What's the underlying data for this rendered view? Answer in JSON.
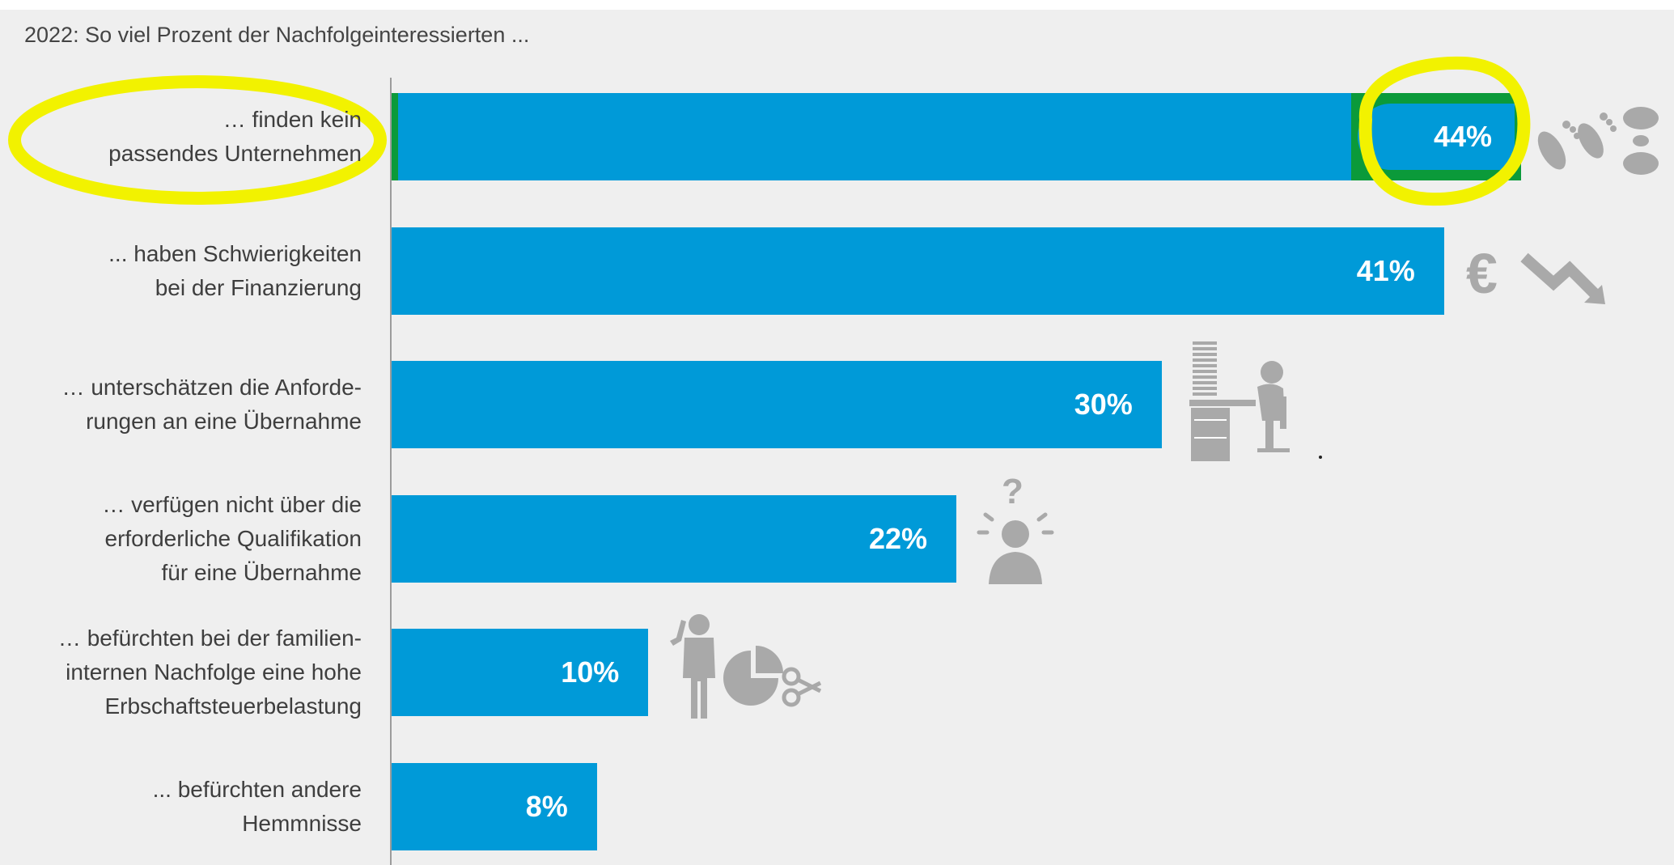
{
  "chart_data": {
    "type": "bar",
    "orientation": "horizontal",
    "title": "2022: So viel Prozent der Nachfolgeinteressierten ...",
    "categories": [
      "… finden kein\npassendes Unternehmen",
      "... haben Schwierigkeiten\nbei der Finanzierung",
      "… unterschätzen die Anforde-\nrungen an eine Übernahme",
      "… verfügen nicht über die\nerforderliche Qualifikation\nfür eine Übernahme",
      "… befürchten bei der familien-\ninternen Nachfolge eine hohe\nErbschaftsteuerbelastung",
      "... befürchten andere\nHemmnisse"
    ],
    "values": [
      44,
      41,
      30,
      22,
      10,
      8
    ],
    "value_labels": [
      "44%",
      "41%",
      "30%",
      "22%",
      "10%",
      "8%"
    ],
    "value_unit": "%",
    "xlim": [
      0,
      50
    ],
    "grid": false,
    "bar_color": "#009ad8",
    "highlight_color": "#ffff00",
    "highlighted_category_index": 0,
    "icons": [
      "footprints-icon",
      "euro-falling-icon",
      "paperwork-desk-icon",
      "question-person-icon",
      "thinking-person-pie-icon",
      ""
    ]
  }
}
